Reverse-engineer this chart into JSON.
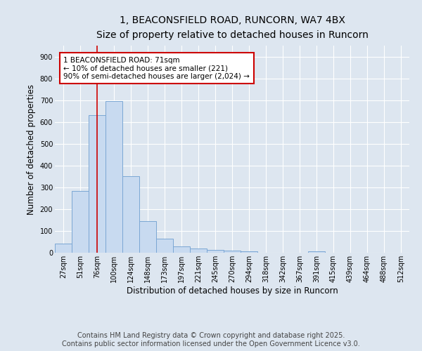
{
  "title": "1, BEACONSFIELD ROAD, RUNCORN, WA7 4BX",
  "subtitle": "Size of property relative to detached houses in Runcorn",
  "xlabel": "Distribution of detached houses by size in Runcorn",
  "ylabel": "Number of detached properties",
  "categories": [
    "27sqm",
    "51sqm",
    "76sqm",
    "100sqm",
    "124sqm",
    "148sqm",
    "173sqm",
    "197sqm",
    "221sqm",
    "245sqm",
    "270sqm",
    "294sqm",
    "318sqm",
    "342sqm",
    "367sqm",
    "391sqm",
    "415sqm",
    "439sqm",
    "464sqm",
    "488sqm",
    "512sqm"
  ],
  "values": [
    43,
    283,
    630,
    695,
    350,
    145,
    65,
    30,
    18,
    12,
    10,
    8,
    0,
    0,
    0,
    8,
    0,
    0,
    0,
    0,
    0
  ],
  "bar_color": "#c8daf0",
  "bar_edge_color": "#7ba7d4",
  "red_line_x": 2,
  "annotation_text": "1 BEACONSFIELD ROAD: 71sqm\n← 10% of detached houses are smaller (221)\n90% of semi-detached houses are larger (2,024) →",
  "annotation_box_color": "#ffffff",
  "annotation_border_color": "#cc0000",
  "ylim": [
    0,
    950
  ],
  "yticks": [
    0,
    100,
    200,
    300,
    400,
    500,
    600,
    700,
    800,
    900
  ],
  "background_color": "#dde6f0",
  "plot_bg_color": "#dde6f0",
  "footer_line1": "Contains HM Land Registry data © Crown copyright and database right 2025.",
  "footer_line2": "Contains public sector information licensed under the Open Government Licence v3.0.",
  "title_fontsize": 10,
  "subtitle_fontsize": 9,
  "tick_fontsize": 7,
  "label_fontsize": 8.5,
  "footer_fontsize": 7,
  "annot_fontsize": 7.5
}
